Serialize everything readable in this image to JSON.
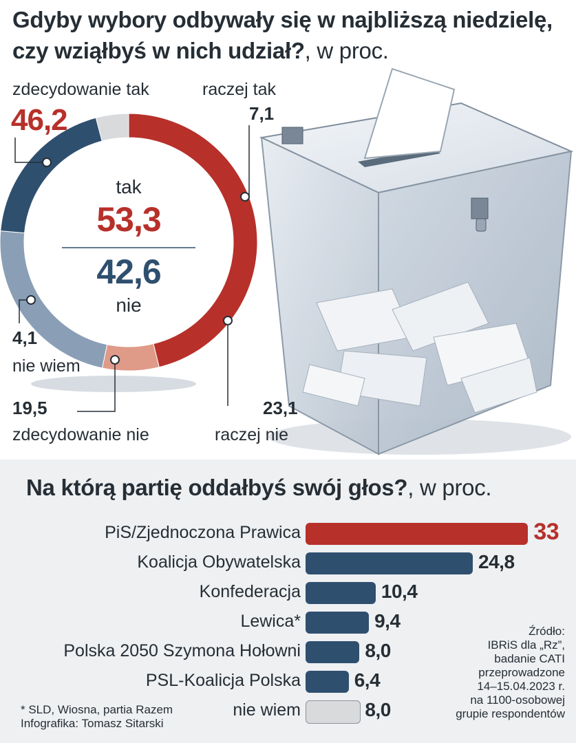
{
  "header": {
    "title": "Gdyby wybory odbywały się w najbliższą niedzielę, czy wziąłbyś w nich udział?",
    "title_suffix": ", w proc."
  },
  "colors": {
    "red": "#b7302a",
    "light_red": "#e09a88",
    "dark_blue": "#2f4f6f",
    "light_blue": "#8a9fb6",
    "grey": "#d9dadc",
    "pie_order_note": "clockwise from top"
  },
  "chart_data": [
    {
      "type": "pie",
      "title": "Gdyby wybory odbywały się w najbliższą niedzielę, czy wziąłbyś w nich udział?",
      "unit": "w proc.",
      "slices": [
        {
          "label": "zdecydowanie tak",
          "value": 46.2,
          "display": "46,2",
          "color": "#b7302a"
        },
        {
          "label": "raczej tak",
          "value": 7.1,
          "display": "7,1",
          "color": "#e09a88"
        },
        {
          "label": "raczej nie",
          "value": 23.1,
          "display": "23,1",
          "color": "#8a9fb6"
        },
        {
          "label": "zdecydowanie nie",
          "value": 19.5,
          "display": "19,5",
          "color": "#2f4f6f"
        },
        {
          "label": "nie wiem",
          "value": 4.1,
          "display": "4,1",
          "color": "#d9dadc"
        }
      ],
      "center": {
        "yes_label": "tak",
        "yes_value": "53,3",
        "no_value": "42,6",
        "no_label": "nie"
      }
    },
    {
      "type": "bar",
      "title": "Na którą partię oddałbyś swój głos?",
      "unit": "w proc.",
      "categories": [
        "PiS/Zjednoczona Prawica",
        "Koalicja Obywatelska",
        "Konfederacja",
        "Lewica*",
        "Polska 2050 Szymona Hołowni",
        "PSL-Koalicja Polska",
        "nie wiem"
      ],
      "values": [
        33,
        24.8,
        10.4,
        9.4,
        8.0,
        6.4,
        8.0
      ],
      "display": [
        "33",
        "24,8",
        "10,4",
        "9,4",
        "8,0",
        "6,4",
        "8,0"
      ],
      "colors": [
        "#b7302a",
        "#2f4f6f",
        "#2f4f6f",
        "#2f4f6f",
        "#2f4f6f",
        "#2f4f6f",
        "#d9dadc"
      ]
    }
  ],
  "bars_section": {
    "title": "Na którą partię oddałbyś swój głos?",
    "title_suffix": ", w proc."
  },
  "source": {
    "lines": [
      "Źródło:",
      "IBRiS dla „Rz”,",
      "badanie CATI",
      "przeprowadzone",
      "14–15.04.2023 r.",
      "na 1100-osobowej",
      "grupie respondentów"
    ]
  },
  "footnote": {
    "line1": "* SLD, Wiosna, partia Razem",
    "line2": "Infografika: Tomasz Sitarski"
  }
}
